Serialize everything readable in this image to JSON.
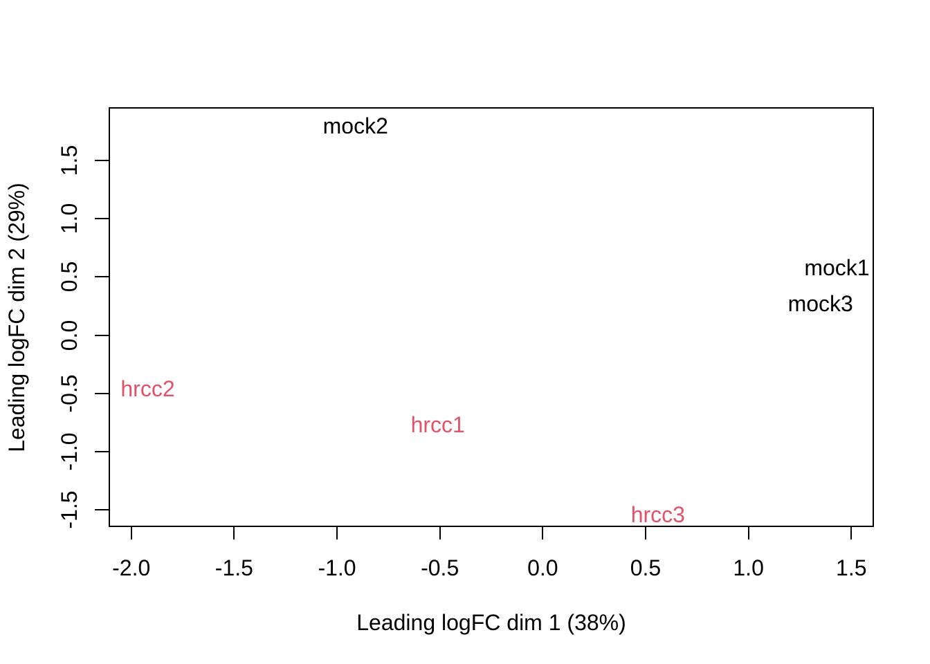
{
  "chart_data": {
    "type": "scatter",
    "subtype": "mds-plot-text-labels",
    "title": "",
    "xlabel": "Leading logFC dim 1 (38%)",
    "ylabel": "Leading logFC dim 2 (29%)",
    "xlim": [
      -2.11,
      1.61
    ],
    "ylim": [
      -1.65,
      1.96
    ],
    "x_ticks": [
      -2.0,
      -1.5,
      -1.0,
      -0.5,
      0.0,
      0.5,
      1.0,
      1.5
    ],
    "x_tick_labels": [
      "-2.0",
      "-1.5",
      "-1.0",
      "-0.5",
      "0.0",
      "0.5",
      "1.0",
      "1.5"
    ],
    "y_ticks": [
      -1.5,
      -1.0,
      -0.5,
      0.0,
      0.5,
      1.0,
      1.5
    ],
    "y_tick_labels": [
      "-1.5",
      "-1.0",
      "-0.5",
      "0.0",
      "0.5",
      "1.0",
      "1.5"
    ],
    "grid": false,
    "legend": "none",
    "marker": "text-label",
    "groups": [
      {
        "name": "mock",
        "color": "#000000"
      },
      {
        "name": "hrcc",
        "color": "#DF536B"
      }
    ],
    "points": [
      {
        "label": "mock2",
        "x": -0.91,
        "y": 1.8,
        "group": "mock"
      },
      {
        "label": "mock1",
        "x": 1.43,
        "y": 0.58,
        "group": "mock"
      },
      {
        "label": "mock3",
        "x": 1.35,
        "y": 0.27,
        "group": "mock"
      },
      {
        "label": "hrcc2",
        "x": -1.92,
        "y": -0.46,
        "group": "hrcc"
      },
      {
        "label": "hrcc1",
        "x": -0.51,
        "y": -0.77,
        "group": "hrcc"
      },
      {
        "label": "hrcc3",
        "x": 0.56,
        "y": -1.54,
        "group": "hrcc"
      }
    ],
    "colors": {
      "axis": "#000000",
      "background": "#ffffff"
    }
  }
}
